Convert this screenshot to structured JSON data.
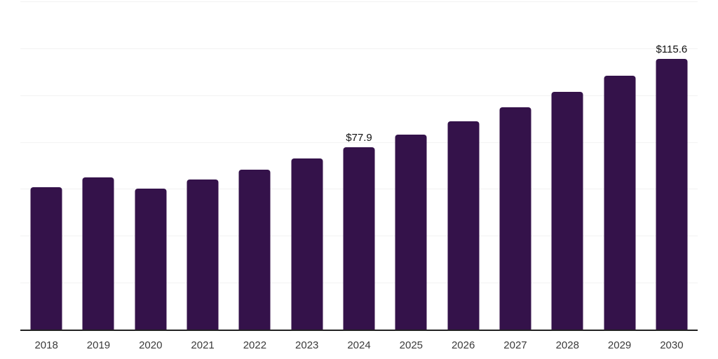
{
  "chart_data": {
    "type": "bar",
    "categories": [
      "2018",
      "2019",
      "2020",
      "2021",
      "2022",
      "2023",
      "2024",
      "2025",
      "2026",
      "2027",
      "2028",
      "2029",
      "2030"
    ],
    "values": [
      60.7,
      65.0,
      60.1,
      64.0,
      68.2,
      72.9,
      77.9,
      83.2,
      88.9,
      94.9,
      101.4,
      108.3,
      115.6
    ],
    "data_labels": [
      "",
      "",
      "",
      "",
      "",
      "",
      "$77.9",
      "",
      "",
      "",
      "",
      "",
      "$115.6"
    ],
    "ylim": [
      0,
      140
    ],
    "ytick_step": 20,
    "grid": true,
    "legend": false,
    "colors": {
      "background": "#ffffff",
      "bar": "#34124a",
      "grid": "#f2f2f2",
      "axis": "#222222",
      "tick_label": "#3a3a3a",
      "data_label": "#111111"
    }
  }
}
